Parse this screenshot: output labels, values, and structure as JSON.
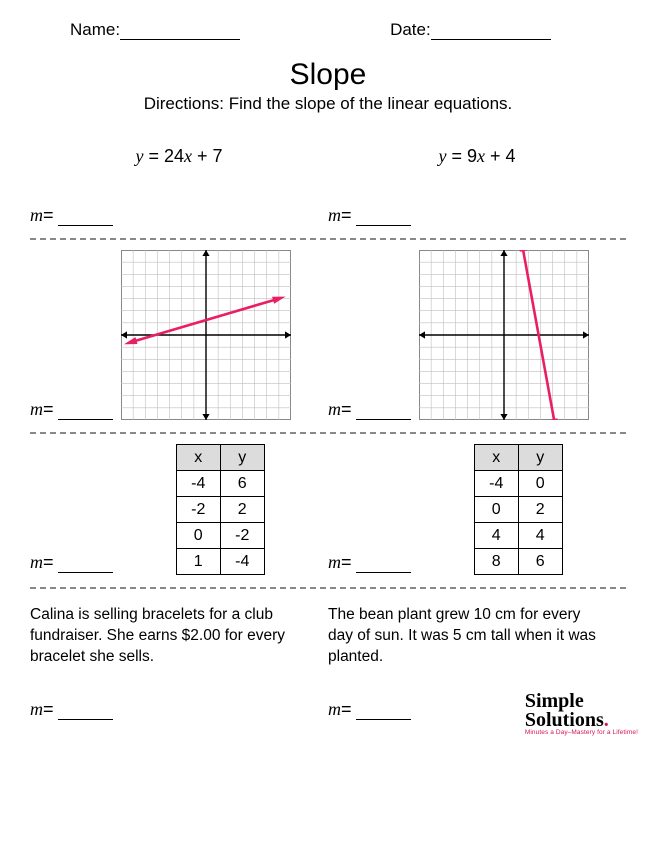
{
  "header": {
    "name_label": "Name:",
    "date_label": "Date:"
  },
  "title": "Slope",
  "directions": "Directions:  Find the slope of the linear equations.",
  "m_label": "m",
  "equals": " = ",
  "section1": {
    "left": {
      "prefix": "y",
      "mid": " = 24",
      "xvar": "x",
      "suffix": " + 7"
    },
    "right": {
      "prefix": "y",
      "mid": " = 9",
      "xvar": "x",
      "suffix": " + 4"
    }
  },
  "section2": {
    "grid": {
      "size": 170,
      "cells": 14,
      "cell_color": "#bfbfbf",
      "axis_color": "#000000",
      "line_color": "#e91e63",
      "line_width": 2.6,
      "arrow_size": 6
    },
    "left_line": {
      "x1": -6.2,
      "y1": -0.6,
      "x2": 6.0,
      "y2": 3.0
    },
    "right_line": {
      "x1": 1.5,
      "y1": 7.4,
      "x2": 4.2,
      "y2": -7.4
    }
  },
  "section3": {
    "headers": {
      "x": "x",
      "y": "y"
    },
    "left": {
      "rows": [
        [
          "-4",
          "6"
        ],
        [
          "-2",
          "2"
        ],
        [
          "0",
          "-2"
        ],
        [
          "1",
          "-4"
        ]
      ]
    },
    "right": {
      "rows": [
        [
          "-4",
          "0"
        ],
        [
          "0",
          "2"
        ],
        [
          "4",
          "4"
        ],
        [
          "8",
          "6"
        ]
      ]
    }
  },
  "section4": {
    "left_text": "Calina is selling bracelets for a club fundraiser.  She earns $2.00 for every bracelet she sells.",
    "right_text": "The bean plant grew 10 cm for every day of sun. It was 5 cm tall when it was planted."
  },
  "logo": {
    "line1": "Simple",
    "line2": "Solutions",
    "tagline": "Minutes a Day–Mastery for a Lifetime!"
  }
}
